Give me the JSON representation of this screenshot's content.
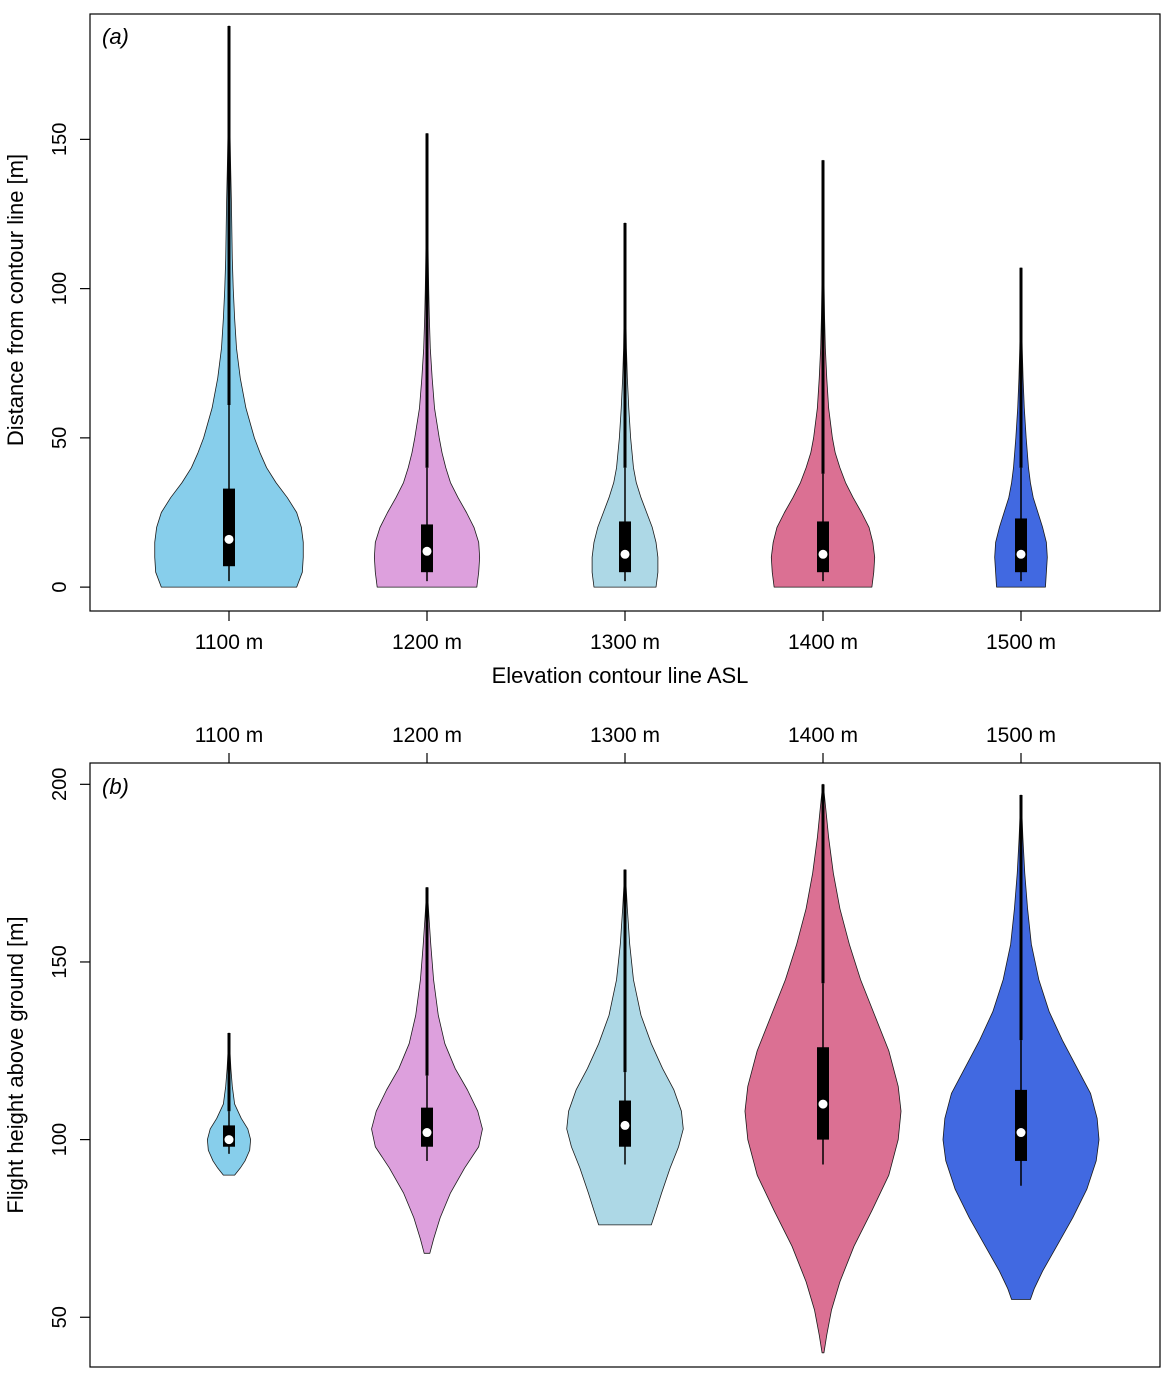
{
  "chart_data": [
    {
      "type": "violin",
      "panel_label": "(a)",
      "categories": [
        "1100 m",
        "1200 m",
        "1300 m",
        "1400 m",
        "1500 m"
      ],
      "colors": [
        "#87ceeb",
        "#dda0dd",
        "#add8e6",
        "#db7093",
        "#4169e1"
      ],
      "xlabel": "Elevation contour line ASL",
      "ylabel": "Distance from contour line [m]",
      "ylim": [
        -8,
        192
      ],
      "yticks": [
        0,
        50,
        100,
        150
      ],
      "violins": [
        {
          "min": 0,
          "max": 188,
          "profile": [
            [
              0,
              0.72
            ],
            [
              5,
              0.78
            ],
            [
              10,
              0.79
            ],
            [
              15,
              0.79
            ],
            [
              20,
              0.77
            ],
            [
              25,
              0.72
            ],
            [
              30,
              0.62
            ],
            [
              35,
              0.5
            ],
            [
              40,
              0.4
            ],
            [
              45,
              0.33
            ],
            [
              50,
              0.27
            ],
            [
              60,
              0.18
            ],
            [
              70,
              0.12
            ],
            [
              80,
              0.08
            ],
            [
              90,
              0.06
            ],
            [
              100,
              0.045
            ],
            [
              110,
              0.035
            ],
            [
              120,
              0.03
            ],
            [
              130,
              0.025
            ],
            [
              140,
              0.018
            ],
            [
              150,
              0.012
            ],
            [
              160,
              0.008
            ],
            [
              170,
              0.005
            ],
            [
              180,
              0.003
            ],
            [
              188,
              0.001
            ]
          ],
          "q1": 7,
          "median": 16,
          "q3": 33,
          "whisker_low": 2,
          "whisker_high": 61
        },
        {
          "min": 0,
          "max": 152,
          "profile": [
            [
              0,
              0.53
            ],
            [
              5,
              0.55
            ],
            [
              10,
              0.56
            ],
            [
              15,
              0.55
            ],
            [
              20,
              0.5
            ],
            [
              25,
              0.42
            ],
            [
              30,
              0.33
            ],
            [
              35,
              0.25
            ],
            [
              40,
              0.2
            ],
            [
              45,
              0.16
            ],
            [
              50,
              0.13
            ],
            [
              60,
              0.08
            ],
            [
              70,
              0.055
            ],
            [
              80,
              0.035
            ],
            [
              90,
              0.025
            ],
            [
              100,
              0.018
            ],
            [
              110,
              0.013
            ],
            [
              120,
              0.009
            ],
            [
              130,
              0.006
            ],
            [
              140,
              0.004
            ],
            [
              152,
              0.001
            ]
          ],
          "q1": 5,
          "median": 12,
          "q3": 21,
          "whisker_low": 2,
          "whisker_high": 40
        },
        {
          "min": 0,
          "max": 122,
          "profile": [
            [
              0,
              0.33
            ],
            [
              5,
              0.35
            ],
            [
              10,
              0.35
            ],
            [
              15,
              0.33
            ],
            [
              20,
              0.29
            ],
            [
              25,
              0.23
            ],
            [
              30,
              0.17
            ],
            [
              35,
              0.12
            ],
            [
              40,
              0.09
            ],
            [
              50,
              0.06
            ],
            [
              60,
              0.04
            ],
            [
              70,
              0.025
            ],
            [
              80,
              0.015
            ],
            [
              90,
              0.01
            ],
            [
              100,
              0.006
            ],
            [
              110,
              0.004
            ],
            [
              122,
              0.001
            ]
          ],
          "q1": 5,
          "median": 11,
          "q3": 22,
          "whisker_low": 2,
          "whisker_high": 40
        },
        {
          "min": 0,
          "max": 143,
          "profile": [
            [
              0,
              0.52
            ],
            [
              5,
              0.54
            ],
            [
              10,
              0.55
            ],
            [
              15,
              0.53
            ],
            [
              20,
              0.49
            ],
            [
              25,
              0.41
            ],
            [
              30,
              0.32
            ],
            [
              35,
              0.24
            ],
            [
              40,
              0.18
            ],
            [
              45,
              0.13
            ],
            [
              50,
              0.1
            ],
            [
              60,
              0.06
            ],
            [
              70,
              0.04
            ],
            [
              80,
              0.025
            ],
            [
              90,
              0.017
            ],
            [
              100,
              0.012
            ],
            [
              110,
              0.009
            ],
            [
              120,
              0.007
            ],
            [
              130,
              0.004
            ],
            [
              143,
              0.001
            ]
          ],
          "q1": 5,
          "median": 11,
          "q3": 22,
          "whisker_low": 2,
          "whisker_high": 38
        },
        {
          "min": 0,
          "max": 107,
          "profile": [
            [
              0,
              0.26
            ],
            [
              5,
              0.27
            ],
            [
              10,
              0.28
            ],
            [
              15,
              0.27
            ],
            [
              20,
              0.23
            ],
            [
              25,
              0.18
            ],
            [
              30,
              0.13
            ],
            [
              35,
              0.1
            ],
            [
              40,
              0.08
            ],
            [
              50,
              0.055
            ],
            [
              60,
              0.035
            ],
            [
              70,
              0.022
            ],
            [
              80,
              0.013
            ],
            [
              90,
              0.007
            ],
            [
              100,
              0.004
            ],
            [
              107,
              0.001
            ]
          ],
          "q1": 5,
          "median": 11,
          "q3": 23,
          "whisker_low": 2,
          "whisker_high": 40
        }
      ]
    },
    {
      "type": "violin",
      "panel_label": "(b)",
      "categories": [
        "1100 m",
        "1200 m",
        "1300 m",
        "1400 m",
        "1500 m"
      ],
      "colors": [
        "#87ceeb",
        "#dda0dd",
        "#add8e6",
        "#db7093",
        "#4169e1"
      ],
      "xlabel": "",
      "ylabel": "Flight height above ground [m]",
      "ylim": [
        36,
        206
      ],
      "yticks": [
        50,
        100,
        150,
        200
      ],
      "violins": [
        {
          "min": 90,
          "max": 130,
          "profile": [
            [
              90,
              0.06
            ],
            [
              92,
              0.12
            ],
            [
              94,
              0.17
            ],
            [
              97,
              0.22
            ],
            [
              100,
              0.23
            ],
            [
              103,
              0.2
            ],
            [
              106,
              0.13
            ],
            [
              110,
              0.06
            ],
            [
              115,
              0.035
            ],
            [
              120,
              0.02
            ],
            [
              125,
              0.01
            ],
            [
              130,
              0.002
            ]
          ],
          "q1": 98,
          "median": 100,
          "q3": 104,
          "whisker_low": 96,
          "whisker_high": 108
        },
        {
          "min": 68,
          "max": 171,
          "profile": [
            [
              68,
              0.03
            ],
            [
              72,
              0.07
            ],
            [
              78,
              0.14
            ],
            [
              85,
              0.25
            ],
            [
              92,
              0.4
            ],
            [
              98,
              0.55
            ],
            [
              103,
              0.59
            ],
            [
              108,
              0.54
            ],
            [
              114,
              0.43
            ],
            [
              120,
              0.3
            ],
            [
              127,
              0.19
            ],
            [
              135,
              0.12
            ],
            [
              145,
              0.07
            ],
            [
              155,
              0.04
            ],
            [
              163,
              0.02
            ],
            [
              171,
              0.002
            ]
          ],
          "q1": 98,
          "median": 102,
          "q3": 109,
          "whisker_low": 94,
          "whisker_high": 118
        },
        {
          "min": 76,
          "max": 176,
          "profile": [
            [
              76,
              0.28
            ],
            [
              80,
              0.33
            ],
            [
              85,
              0.39
            ],
            [
              92,
              0.48
            ],
            [
              98,
              0.57
            ],
            [
              103,
              0.62
            ],
            [
              108,
              0.6
            ],
            [
              114,
              0.52
            ],
            [
              120,
              0.4
            ],
            [
              127,
              0.28
            ],
            [
              135,
              0.17
            ],
            [
              145,
              0.09
            ],
            [
              155,
              0.05
            ],
            [
              165,
              0.025
            ],
            [
              176,
              0.002
            ]
          ],
          "q1": 98,
          "median": 104,
          "q3": 111,
          "whisker_low": 93,
          "whisker_high": 119
        },
        {
          "min": 40,
          "max": 200,
          "profile": [
            [
              40,
              0.01
            ],
            [
              45,
              0.04
            ],
            [
              52,
              0.09
            ],
            [
              60,
              0.18
            ],
            [
              70,
              0.33
            ],
            [
              80,
              0.52
            ],
            [
              90,
              0.7
            ],
            [
              100,
              0.8
            ],
            [
              108,
              0.83
            ],
            [
              115,
              0.8
            ],
            [
              125,
              0.7
            ],
            [
              135,
              0.55
            ],
            [
              145,
              0.4
            ],
            [
              155,
              0.28
            ],
            [
              165,
              0.18
            ],
            [
              175,
              0.11
            ],
            [
              185,
              0.06
            ],
            [
              193,
              0.03
            ],
            [
              200,
              0.003
            ]
          ],
          "q1": 100,
          "median": 110,
          "q3": 126,
          "whisker_low": 93,
          "whisker_high": 144
        },
        {
          "min": 55,
          "max": 197,
          "profile": [
            [
              55,
              0.1
            ],
            [
              58,
              0.14
            ],
            [
              63,
              0.23
            ],
            [
              70,
              0.38
            ],
            [
              78,
              0.55
            ],
            [
              86,
              0.7
            ],
            [
              94,
              0.8
            ],
            [
              100,
              0.83
            ],
            [
              106,
              0.81
            ],
            [
              113,
              0.74
            ],
            [
              120,
              0.6
            ],
            [
              128,
              0.44
            ],
            [
              136,
              0.3
            ],
            [
              145,
              0.19
            ],
            [
              155,
              0.11
            ],
            [
              165,
              0.07
            ],
            [
              175,
              0.04
            ],
            [
              185,
              0.02
            ],
            [
              197,
              0.002
            ]
          ],
          "q1": 94,
          "median": 102,
          "q3": 114,
          "whisker_low": 87,
          "whisker_high": 128
        }
      ]
    }
  ]
}
